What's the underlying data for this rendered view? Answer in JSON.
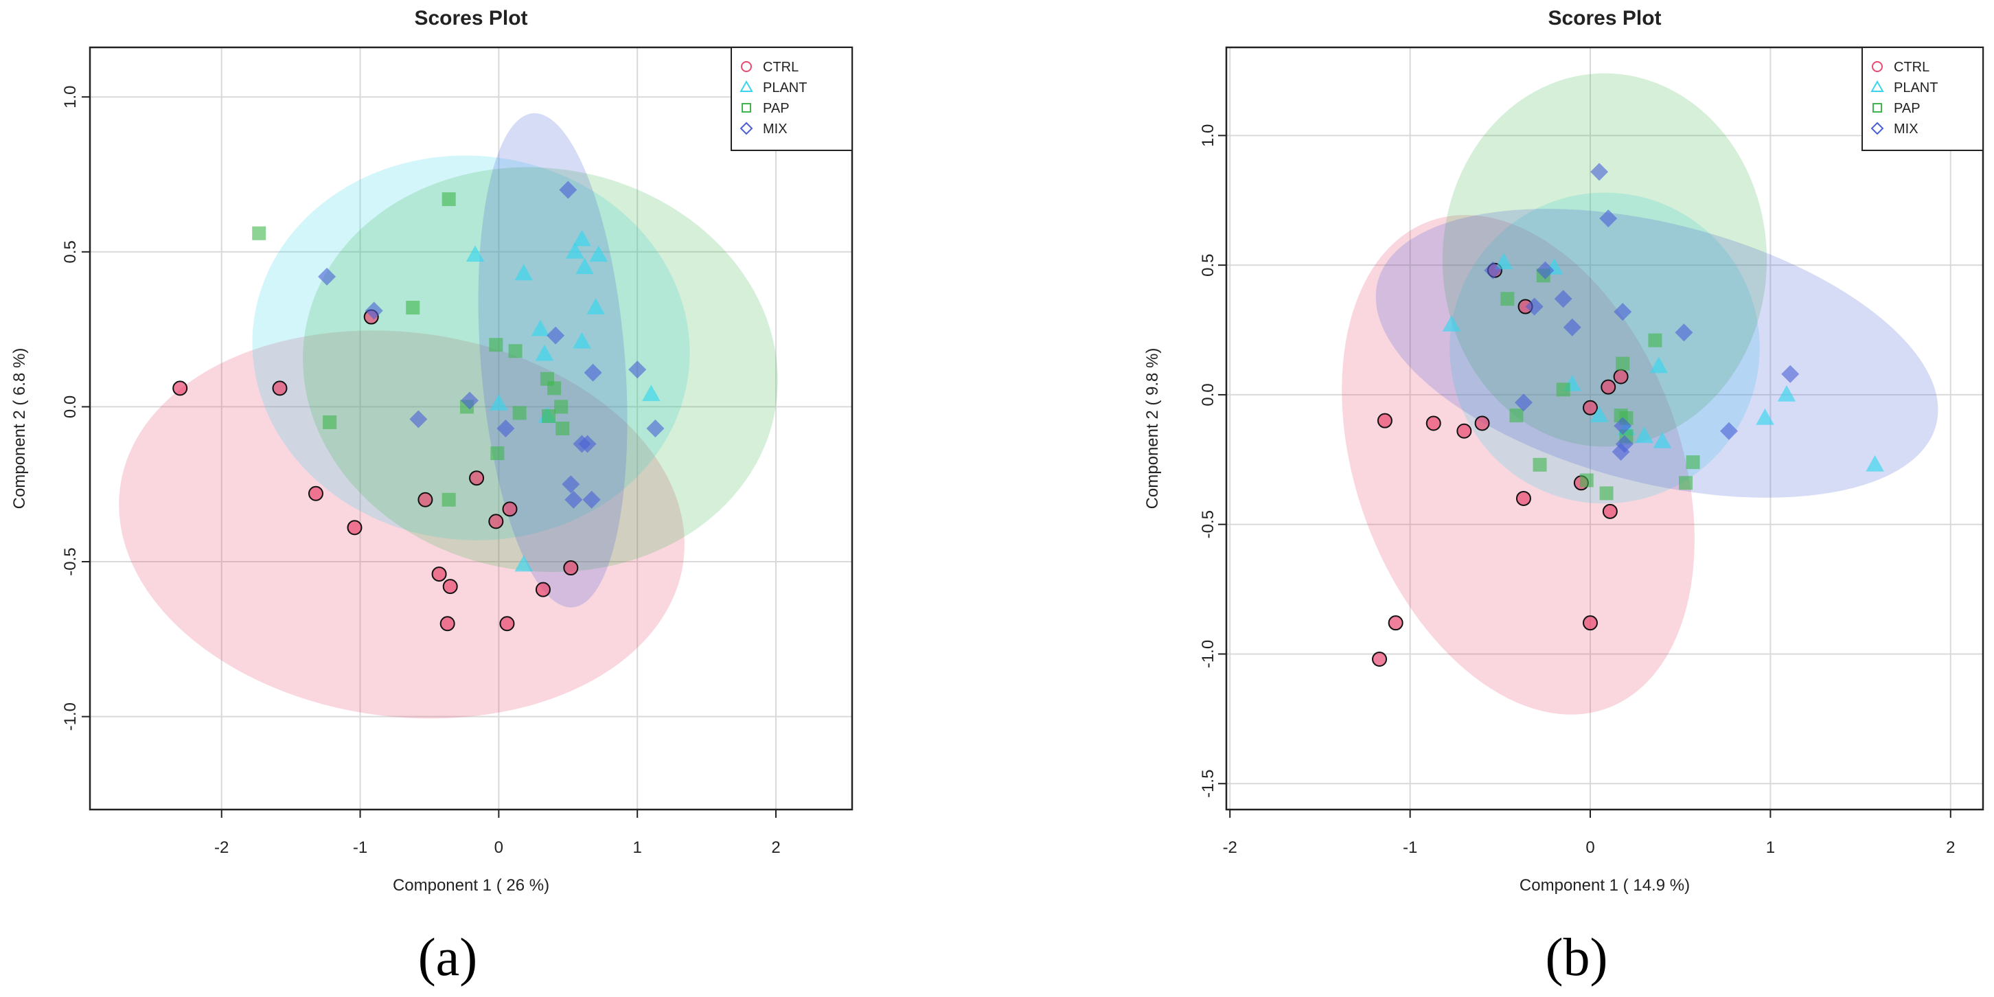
{
  "colors": {
    "CTRL": "#e8496f",
    "PLANT": "#38d6ee",
    "PAP": "#3fb54d",
    "MIX": "#4a5fd6"
  },
  "panels": [
    {
      "label": "(a)"
    },
    {
      "label": "(b)"
    }
  ],
  "chart_data": [
    {
      "type": "scatter",
      "title": "Scores Plot",
      "xlabel": "Component 1 ( 26 %)",
      "ylabel": "Component 2 ( 6.8 %)",
      "xlim": [
        -2.95,
        2.55
      ],
      "ylim": [
        -1.3,
        1.16
      ],
      "xticks": [
        -2,
        -1,
        0,
        1,
        2
      ],
      "yticks": [
        -1.0,
        -0.5,
        0.0,
        0.5,
        1.0
      ],
      "ytick_labels": [
        "-1.0",
        "-0.5",
        "0.0",
        "0.5",
        "1.0"
      ],
      "grid": true,
      "legend_position": "top-right",
      "series": [
        {
          "name": "CTRL",
          "marker": "circle",
          "x": [
            -2.3,
            -1.58,
            -0.92,
            -1.32,
            -1.04,
            -0.53,
            -0.16,
            -0.43,
            -0.35,
            -0.37,
            -0.02,
            0.08,
            0.52,
            0.32,
            0.06
          ],
          "y": [
            0.06,
            0.06,
            0.29,
            -0.28,
            -0.39,
            -0.3,
            -0.23,
            -0.54,
            -0.58,
            -0.7,
            -0.37,
            -0.33,
            -0.52,
            -0.59,
            -0.7
          ]
        },
        {
          "name": "PLANT",
          "marker": "triangle",
          "x": [
            -0.17,
            0.18,
            0.6,
            0.55,
            0.72,
            0.62,
            0.3,
            0.33,
            0.6,
            0.0,
            0.35,
            0.18,
            1.1,
            0.7
          ],
          "y": [
            0.49,
            0.43,
            0.54,
            0.5,
            0.49,
            0.45,
            0.25,
            0.17,
            0.21,
            0.01,
            -0.03,
            -0.51,
            0.04,
            0.32
          ]
        },
        {
          "name": "PAP",
          "marker": "square",
          "x": [
            -1.73,
            -0.36,
            -0.62,
            -1.22,
            -0.23,
            -0.02,
            0.12,
            0.35,
            0.4,
            0.45,
            0.15,
            0.46,
            0.36,
            -0.01,
            -0.36
          ],
          "y": [
            0.56,
            0.67,
            0.32,
            -0.05,
            0.0,
            0.2,
            0.18,
            0.09,
            0.06,
            0.0,
            -0.02,
            -0.07,
            -0.03,
            -0.15,
            -0.3
          ]
        },
        {
          "name": "MIX",
          "marker": "diamond",
          "x": [
            0.5,
            -1.24,
            -0.9,
            0.41,
            0.68,
            1.0,
            -0.58,
            -0.21,
            0.05,
            0.6,
            0.64,
            0.52,
            0.54,
            0.67,
            1.13
          ],
          "y": [
            0.7,
            0.42,
            0.31,
            0.23,
            0.11,
            0.12,
            -0.04,
            0.02,
            -0.07,
            -0.12,
            -0.12,
            -0.25,
            -0.3,
            -0.3,
            -0.07
          ]
        }
      ],
      "ellipses": [
        {
          "group": "CTRL",
          "center": [
            -0.7,
            -0.38
          ],
          "rx": 2.05,
          "ry": 0.62,
          "angle": -0.13
        },
        {
          "group": "PLANT",
          "center": [
            -0.2,
            0.19
          ],
          "rx": 1.58,
          "ry": 0.62,
          "angle": -0.1
        },
        {
          "group": "PAP",
          "center": [
            0.3,
            0.12
          ],
          "rx": 1.72,
          "ry": 0.65,
          "angle": -0.16
        },
        {
          "group": "MIX",
          "center": [
            0.39,
            0.15
          ],
          "rx": 0.52,
          "ry": 0.8,
          "angle": 0.08
        }
      ]
    },
    {
      "type": "scatter",
      "title": "Scores Plot",
      "xlabel": "Component 1 ( 14.9 %)",
      "ylabel": "Component 2 ( 9.8 %)",
      "xlim": [
        -2.02,
        2.18
      ],
      "ylim": [
        -1.6,
        1.34
      ],
      "xticks": [
        -2,
        -1,
        0,
        1,
        2
      ],
      "yticks": [
        -1.5,
        -1.0,
        -0.5,
        0.0,
        0.5,
        1.0
      ],
      "ytick_labels": [
        "-1.5",
        "-1.0",
        "-0.5",
        "0.0",
        "0.5",
        "1.0"
      ],
      "grid": true,
      "legend_position": "top-right",
      "series": [
        {
          "name": "CTRL",
          "marker": "circle",
          "x": [
            -0.53,
            -0.36,
            0.1,
            0.17,
            -1.14,
            -0.87,
            -0.6,
            -0.7,
            0.0,
            -0.05,
            -0.37,
            0.11,
            -1.08,
            0.0,
            -1.17
          ],
          "y": [
            0.48,
            0.34,
            0.03,
            0.07,
            -0.1,
            -0.11,
            -0.11,
            -0.14,
            -0.05,
            -0.34,
            -0.4,
            -0.45,
            -0.88,
            -0.88,
            -1.02
          ]
        },
        {
          "name": "PLANT",
          "marker": "triangle",
          "x": [
            -0.48,
            -0.2,
            -0.77,
            0.38,
            1.09,
            0.97,
            0.2,
            0.3,
            0.4,
            0.05,
            -0.1,
            1.58
          ],
          "y": [
            0.51,
            0.49,
            0.27,
            0.11,
            0.0,
            -0.09,
            -0.13,
            -0.16,
            -0.18,
            -0.08,
            0.04,
            -0.27
          ]
        },
        {
          "name": "PAP",
          "marker": "square",
          "x": [
            -0.26,
            -0.46,
            0.18,
            0.36,
            -0.15,
            -0.41,
            0.17,
            0.2,
            0.2,
            -0.28,
            -0.02,
            0.57,
            0.53,
            0.09
          ],
          "y": [
            0.46,
            0.37,
            0.12,
            0.21,
            0.02,
            -0.08,
            -0.08,
            -0.09,
            -0.16,
            -0.27,
            -0.33,
            -0.26,
            -0.34,
            -0.38
          ]
        },
        {
          "name": "MIX",
          "marker": "diamond",
          "x": [
            0.05,
            0.1,
            -0.54,
            -0.25,
            -0.15,
            0.18,
            -0.31,
            -0.1,
            0.52,
            1.11,
            -0.37,
            0.18,
            0.77,
            0.19,
            0.17
          ],
          "y": [
            0.86,
            0.68,
            0.48,
            0.48,
            0.37,
            0.32,
            0.34,
            0.26,
            0.24,
            0.08,
            -0.03,
            -0.12,
            -0.14,
            -0.19,
            -0.22
          ]
        }
      ],
      "ellipses": [
        {
          "group": "CTRL",
          "center": [
            -0.4,
            -0.27
          ],
          "rx": 0.9,
          "ry": 1.0,
          "angle": 0.35
        },
        {
          "group": "PLANT",
          "center": [
            0.08,
            0.18
          ],
          "rx": 0.86,
          "ry": 0.6,
          "angle": -0.3
        },
        {
          "group": "PAP",
          "center": [
            0.08,
            0.52
          ],
          "rx": 0.9,
          "ry": 0.72,
          "angle": 0.0
        },
        {
          "group": "MIX",
          "center": [
            0.37,
            0.16
          ],
          "rx": 1.6,
          "ry": 0.5,
          "angle": -0.25
        }
      ]
    }
  ]
}
